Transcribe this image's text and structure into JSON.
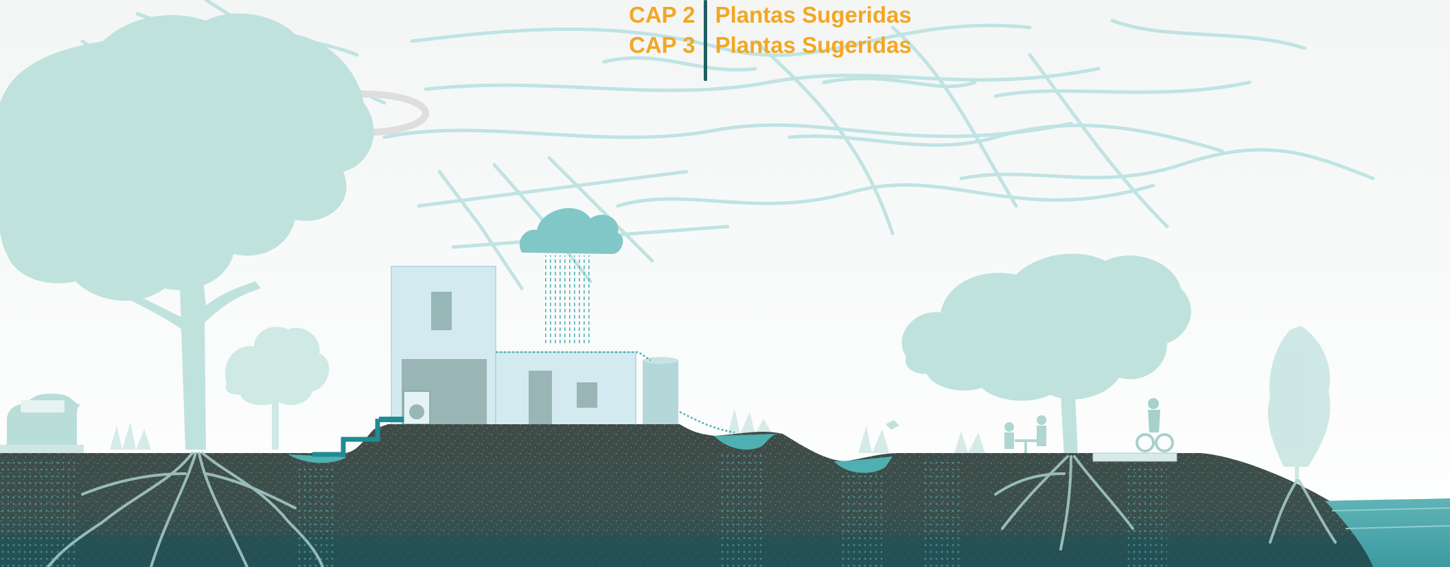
{
  "chapter_nav": {
    "items": [
      {
        "chapter": "CAP 2",
        "title": "Plantas Sugeridas"
      },
      {
        "chapter": "CAP 3",
        "title": "Plantas Sugeridas"
      }
    ]
  },
  "colors": {
    "accent": "#f2a724",
    "divider": "#1d5f63",
    "soil": "#3f4f4b",
    "soil_deep": "#274f53",
    "vegetation": "#bfe2dd",
    "water": "#4fb0b2",
    "map_lines": "#b8e0e0"
  },
  "icons": [
    "car-icon",
    "tree-icon",
    "house-icon",
    "washing-machine-icon",
    "rain-cloud-icon",
    "water-tank-icon",
    "cyclist-icon",
    "people-at-table-icon",
    "bird-icon"
  ]
}
